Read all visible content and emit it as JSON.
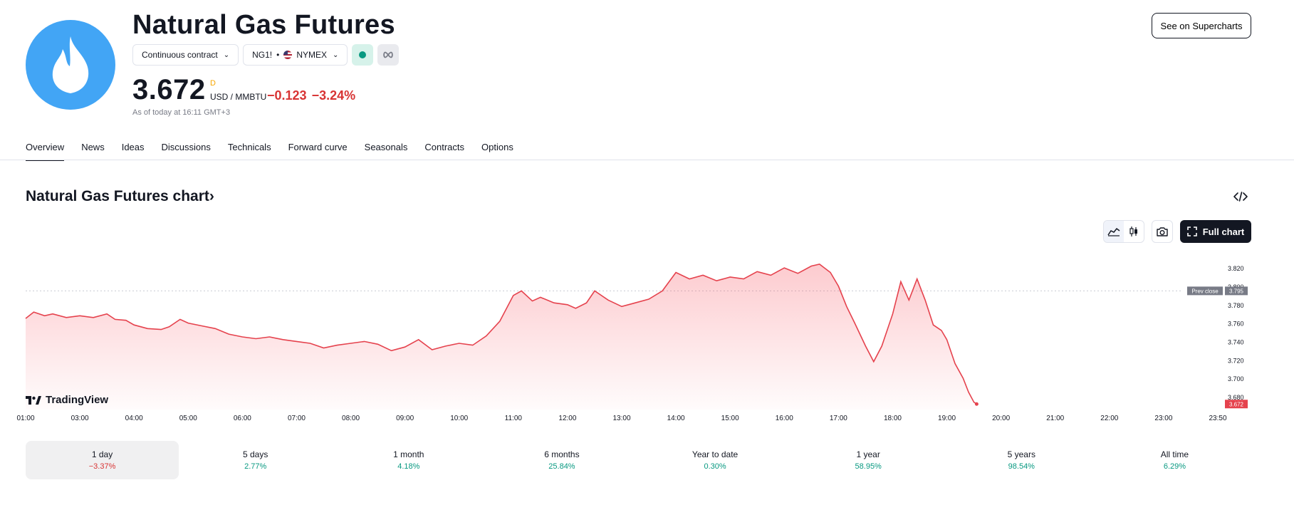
{
  "header": {
    "title": "Natural Gas Futures",
    "contract_label": "Continuous contract",
    "symbol": "NG1!",
    "exchange": "NYMEX",
    "price": "3.672",
    "price_flag": "D",
    "unit": "USD / MMBTU",
    "change": "−0.123",
    "change_pct": "−3.24%",
    "as_of": "As of today at 16:11 GMT+3",
    "supercharts_label": "See on Supercharts"
  },
  "tabs": [
    {
      "label": "Overview",
      "active": true
    },
    {
      "label": "News"
    },
    {
      "label": "Ideas"
    },
    {
      "label": "Discussions"
    },
    {
      "label": "Technicals"
    },
    {
      "label": "Forward curve"
    },
    {
      "label": "Seasonals"
    },
    {
      "label": "Contracts"
    },
    {
      "label": "Options"
    }
  ],
  "chart_section": {
    "title": "Natural Gas Futures chart",
    "title_chevron": "›",
    "full_chart_label": "Full chart",
    "brand": "TradingView"
  },
  "chart_data": {
    "type": "area",
    "series_color": "#e5424d",
    "x_ticks": [
      "01:00",
      "03:00",
      "04:00",
      "05:00",
      "06:00",
      "07:00",
      "08:00",
      "09:00",
      "10:00",
      "11:00",
      "12:00",
      "13:00",
      "14:00",
      "15:00",
      "16:00",
      "17:00",
      "18:00",
      "19:00",
      "20:00",
      "21:00",
      "22:00",
      "23:00",
      "23:50"
    ],
    "y_ticks": [
      "3.820",
      "3.800",
      "3.780",
      "3.760",
      "3.740",
      "3.720",
      "3.700",
      "3.680"
    ],
    "ylim": [
      3.666,
      3.834
    ],
    "prev_close_label": "Prev close",
    "prev_close_value": "3.795",
    "prev_close": 3.795,
    "last_value": "3.672",
    "points": [
      [
        0.0,
        3.765
      ],
      [
        0.3,
        3.772
      ],
      [
        0.7,
        3.768
      ],
      [
        1.0,
        3.77
      ],
      [
        1.5,
        3.766
      ],
      [
        2.0,
        3.768
      ],
      [
        2.5,
        3.766
      ],
      [
        3.0,
        3.77
      ],
      [
        3.3,
        3.764
      ],
      [
        3.7,
        3.763
      ],
      [
        4.0,
        3.758
      ],
      [
        4.5,
        3.754
      ],
      [
        5.0,
        3.753
      ],
      [
        5.3,
        3.756
      ],
      [
        5.7,
        3.764
      ],
      [
        6.0,
        3.76
      ],
      [
        6.5,
        3.757
      ],
      [
        7.0,
        3.754
      ],
      [
        7.5,
        3.748
      ],
      [
        8.0,
        3.745
      ],
      [
        8.5,
        3.743
      ],
      [
        9.0,
        3.745
      ],
      [
        9.5,
        3.742
      ],
      [
        10.0,
        3.74
      ],
      [
        10.5,
        3.738
      ],
      [
        11.0,
        3.733
      ],
      [
        11.5,
        3.736
      ],
      [
        12.0,
        3.738
      ],
      [
        12.5,
        3.74
      ],
      [
        13.0,
        3.737
      ],
      [
        13.5,
        3.73
      ],
      [
        14.0,
        3.734
      ],
      [
        14.5,
        3.742
      ],
      [
        15.0,
        3.731
      ],
      [
        15.5,
        3.735
      ],
      [
        16.0,
        3.738
      ],
      [
        16.5,
        3.736
      ],
      [
        17.0,
        3.746
      ],
      [
        17.5,
        3.762
      ],
      [
        18.0,
        3.79
      ],
      [
        18.3,
        3.795
      ],
      [
        18.7,
        3.784
      ],
      [
        19.0,
        3.788
      ],
      [
        19.5,
        3.782
      ],
      [
        20.0,
        3.78
      ],
      [
        20.3,
        3.776
      ],
      [
        20.7,
        3.782
      ],
      [
        21.0,
        3.795
      ],
      [
        21.5,
        3.785
      ],
      [
        22.0,
        3.778
      ],
      [
        22.5,
        3.782
      ],
      [
        23.0,
        3.786
      ],
      [
        23.5,
        3.795
      ],
      [
        24.0,
        3.815
      ],
      [
        24.5,
        3.808
      ],
      [
        25.0,
        3.812
      ],
      [
        25.5,
        3.806
      ],
      [
        26.0,
        3.81
      ],
      [
        26.5,
        3.808
      ],
      [
        27.0,
        3.816
      ],
      [
        27.5,
        3.812
      ],
      [
        28.0,
        3.82
      ],
      [
        28.5,
        3.814
      ],
      [
        29.0,
        3.822
      ],
      [
        29.3,
        3.824
      ],
      [
        29.7,
        3.815
      ],
      [
        30.0,
        3.8
      ],
      [
        30.3,
        3.778
      ],
      [
        30.6,
        3.76
      ],
      [
        31.0,
        3.735
      ],
      [
        31.3,
        3.718
      ],
      [
        31.6,
        3.735
      ],
      [
        32.0,
        3.77
      ],
      [
        32.3,
        3.805
      ],
      [
        32.6,
        3.785
      ],
      [
        32.9,
        3.808
      ],
      [
        33.2,
        3.785
      ],
      [
        33.5,
        3.758
      ],
      [
        33.8,
        3.752
      ],
      [
        34.0,
        3.742
      ],
      [
        34.3,
        3.716
      ],
      [
        34.6,
        3.7
      ],
      [
        34.8,
        3.685
      ],
      [
        35.0,
        3.674
      ],
      [
        35.1,
        3.672
      ]
    ]
  },
  "periods": [
    {
      "label": "1 day",
      "value": "−3.37%",
      "dir": "neg",
      "active": true
    },
    {
      "label": "5 days",
      "value": "2.77%",
      "dir": "pos"
    },
    {
      "label": "1 month",
      "value": "4.18%",
      "dir": "pos"
    },
    {
      "label": "6 months",
      "value": "25.84%",
      "dir": "pos"
    },
    {
      "label": "Year to date",
      "value": "0.30%",
      "dir": "pos"
    },
    {
      "label": "1 year",
      "value": "58.95%",
      "dir": "pos"
    },
    {
      "label": "5 years",
      "value": "98.54%",
      "dir": "pos"
    },
    {
      "label": "All time",
      "value": "6.29%",
      "dir": "pos"
    }
  ]
}
